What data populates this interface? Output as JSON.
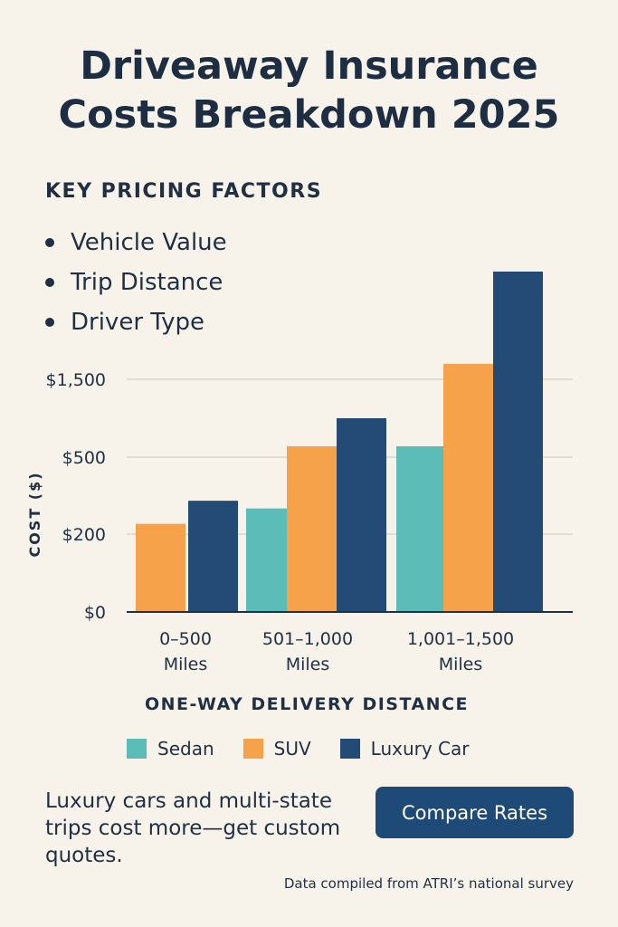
{
  "title_lines": [
    "Driveaway Insurance",
    "Costs Breakdown 2025"
  ],
  "factors": {
    "heading": "KEY PRICING FACTORS",
    "items": [
      "Vehicle Value",
      "Trip Distance",
      "Driver Type"
    ]
  },
  "chart_data": {
    "type": "bar",
    "categories": [
      [
        "0–500",
        "Miles"
      ],
      [
        "501–1,000",
        "Miles"
      ],
      [
        "1,001–1,500",
        "Miles"
      ]
    ],
    "series": [
      {
        "name": "Sedan",
        "color": "#5bbcb8",
        "values": [
          null,
          300,
          640
        ]
      },
      {
        "name": "SUV",
        "color": "#f6a24b",
        "values": [
          240,
          640,
          1700
        ]
      },
      {
        "name": "Luxury Car",
        "color": "#234b75",
        "values": [
          330,
          1000,
          2900
        ]
      }
    ],
    "xlabel": "ONE-WAY DELIVERY DISTANCE",
    "ylabel": "COST ($)",
    "ytick_labels": [
      "$0",
      "$200",
      "$500",
      "$1,500"
    ],
    "ytick_values": [
      0,
      200,
      500,
      1500
    ],
    "grid": true,
    "legend": "bottom"
  },
  "note": "Luxury cars and multi-state trips cost more—get custom quotes.",
  "cta_label": "Compare Rates",
  "source": "Data compiled from ATRI’s national survey"
}
